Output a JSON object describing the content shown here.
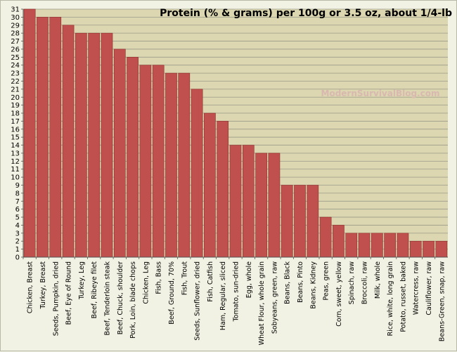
{
  "chart_data": {
    "type": "bar",
    "title": "Protein (% & grams) per 100g or 3.5 oz, about 1/4-lb",
    "watermark": "ModernSurvivalBlog.com",
    "xlabel": "",
    "ylabel": "",
    "ylim": [
      0,
      31
    ],
    "yticks": [
      0,
      1,
      2,
      3,
      4,
      5,
      6,
      7,
      8,
      9,
      10,
      11,
      12,
      13,
      14,
      15,
      16,
      17,
      18,
      19,
      20,
      21,
      22,
      23,
      24,
      25,
      26,
      27,
      28,
      29,
      30,
      31
    ],
    "grid": true,
    "legend": "none",
    "colors": {
      "bar": "#c0504d",
      "bar_edge": "#8c2f2c",
      "plot_bg": "#dcd7b0",
      "grid": "#9a9a8a"
    },
    "categories": [
      "Chicken, Breast",
      "Turkey, Breast",
      "Seeds, Pumpkin, dried",
      "Beef, Eye of Round",
      "Turkey, Leg",
      "Beef, Ribeye filet",
      "Beef, Tenderloin steak",
      "Beef, Chuck, shoulder",
      "Pork, Loin, blade chops",
      "Chicken, Leg",
      "Fish, Bass",
      "Beef, Ground, 70%",
      "Fish, Trout",
      "Seeds, Sunflower, dried",
      "Fish, Catfish",
      "Ham, Regular, sliced",
      "Tomato, sun-dried",
      "Egg, whole",
      "Wheat Flour, whole grain",
      "Sobyeans, green, raw",
      "Beans, Black",
      "Beans, Pinto",
      "Beans, Kidney",
      "Peas, green",
      "Corn, sweet, yellow",
      "Spinach, raw",
      "Broccoli, raw",
      "Milk, whole",
      "Rice, white, long grain",
      "Potato, russet, baked",
      "Watercress, raw",
      "Cauliflower, raw",
      "Beans-Green, snap, raw"
    ],
    "values": [
      31,
      30,
      30,
      29,
      28,
      28,
      28,
      26,
      25,
      24,
      24,
      23,
      23,
      21,
      18,
      17,
      14,
      14,
      13,
      13,
      9,
      9,
      9,
      5,
      4,
      3,
      3,
      3,
      3,
      3,
      2,
      2,
      2
    ]
  }
}
